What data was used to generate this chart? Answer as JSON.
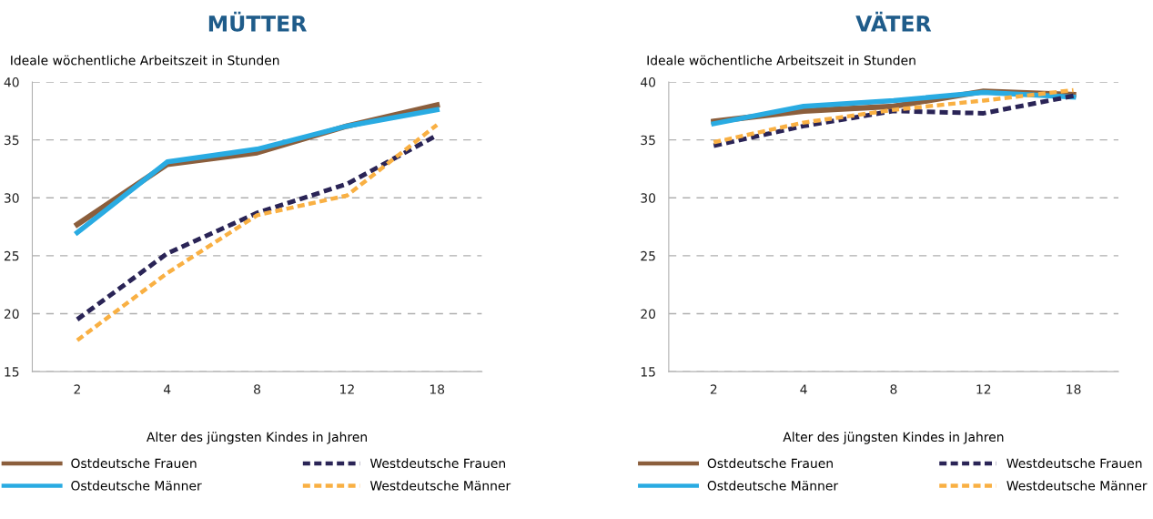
{
  "chart_data": [
    {
      "type": "line",
      "title": "MÜTTER",
      "ylabel": "Ideale wöchentliche Arbeitszeit in Stunden",
      "xlabel": "Alter des jüngsten Kindes in Jahren",
      "categories": [
        "2",
        "4",
        "8",
        "12",
        "18"
      ],
      "ylim": [
        15,
        40
      ],
      "yticks": [
        15,
        20,
        25,
        30,
        35,
        40
      ],
      "grid": "y",
      "legend": "bottom",
      "marker": "none",
      "series": [
        {
          "name": "Ostdeutsche Frauen",
          "color": "#8b5e3c",
          "line_style": "solid",
          "values": [
            27.7,
            32.9,
            33.9,
            36.2,
            38.0
          ]
        },
        {
          "name": "Ostdeutsche Männer",
          "color": "#29abe2",
          "line_style": "solid",
          "values": [
            27.0,
            33.1,
            34.2,
            36.2,
            37.6
          ]
        },
        {
          "name": "Westdeutsche Frauen",
          "color": "#2a2456",
          "line_style": "dashed",
          "values": [
            19.5,
            25.2,
            28.7,
            31.2,
            35.4
          ]
        },
        {
          "name": "Westdeutsche Männer",
          "color": "#f9b043",
          "line_style": "dashed",
          "values": [
            17.7,
            23.5,
            28.5,
            30.2,
            36.3
          ]
        }
      ]
    },
    {
      "type": "line",
      "title": "VÄTER",
      "ylabel": "Ideale wöchentliche Arbeitszeit in Stunden",
      "xlabel": "Alter des jüngsten Kindes in Jahren",
      "categories": [
        "2",
        "4",
        "8",
        "12",
        "18"
      ],
      "ylim": [
        15,
        40
      ],
      "yticks": [
        15,
        20,
        25,
        30,
        35,
        40
      ],
      "grid": "y",
      "legend": "bottom",
      "marker": "none",
      "series": [
        {
          "name": "Ostdeutsche Frauen",
          "color": "#8b5e3c",
          "line_style": "solid",
          "values": [
            36.6,
            37.5,
            37.9,
            39.2,
            38.9
          ]
        },
        {
          "name": "Ostdeutsche Männer",
          "color": "#29abe2",
          "line_style": "solid",
          "values": [
            36.4,
            37.9,
            38.4,
            39.1,
            38.7
          ]
        },
        {
          "name": "Westdeutsche Frauen",
          "color": "#2a2456",
          "line_style": "dashed",
          "values": [
            34.5,
            36.2,
            37.5,
            37.3,
            38.8
          ]
        },
        {
          "name": "Westdeutsche Männer",
          "color": "#f9b043",
          "line_style": "dashed",
          "values": [
            34.8,
            36.5,
            37.6,
            38.4,
            39.3
          ]
        }
      ]
    }
  ]
}
